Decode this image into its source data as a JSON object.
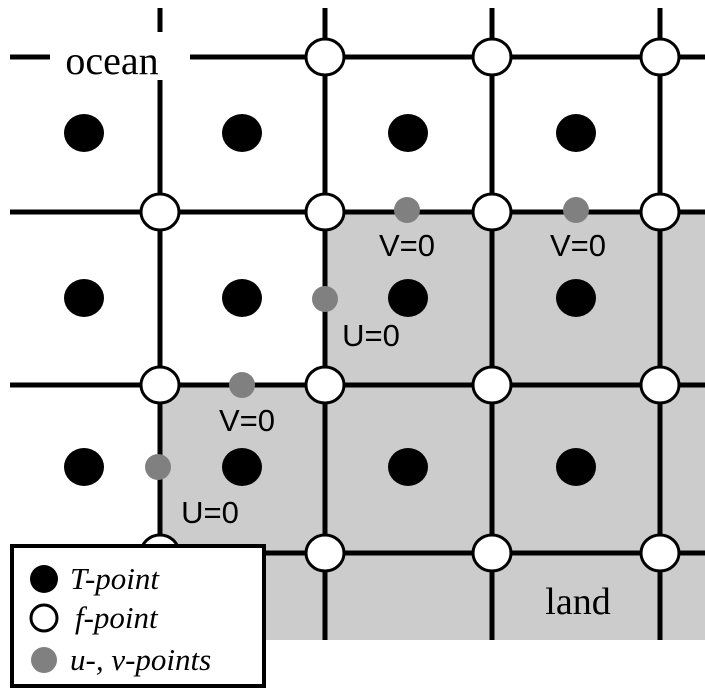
{
  "region_labels": {
    "ocean": "ocean",
    "land": "land"
  },
  "boundary_labels": [
    {
      "id": "v-top-1",
      "text": "V=0"
    },
    {
      "id": "v-top-2",
      "text": "V=0"
    },
    {
      "id": "u-mid",
      "text": "U=0"
    },
    {
      "id": "v-mid",
      "text": "V=0"
    },
    {
      "id": "u-low",
      "text": "U=0"
    }
  ],
  "legend": {
    "items": [
      {
        "key": "t",
        "label": "T-point"
      },
      {
        "key": "f",
        "label": "f-point"
      },
      {
        "key": "uv",
        "label": "u-, v-points"
      }
    ]
  },
  "colors": {
    "line": "#000000",
    "land_fill": "#cccccc",
    "t_point": "#000000",
    "f_point": "#ffffff",
    "uv_point": "#808080",
    "background": "#ffffff"
  }
}
